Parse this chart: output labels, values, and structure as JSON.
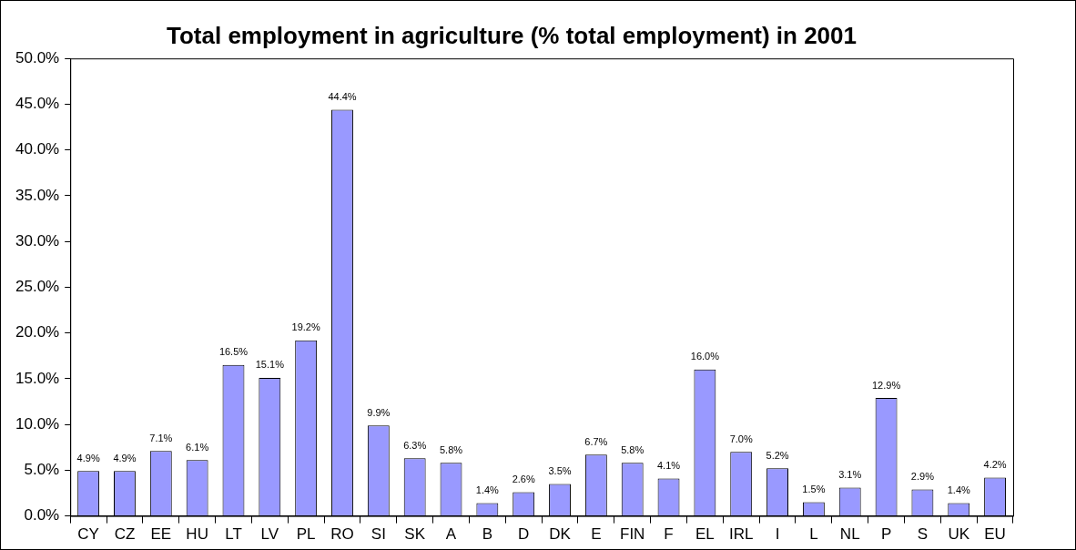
{
  "chart_data": {
    "type": "bar",
    "title": "Total employment in agriculture (% total employment) in 2001",
    "categories": [
      "CY",
      "CZ",
      "EE",
      "HU",
      "LT",
      "LV",
      "PL",
      "RO",
      "SI",
      "SK",
      "A",
      "B",
      "D",
      "DK",
      "E",
      "FIN",
      "F",
      "EL",
      "IRL",
      "I",
      "L",
      "NL",
      "P",
      "S",
      "UK",
      "EU"
    ],
    "values": [
      4.9,
      4.9,
      7.1,
      6.1,
      16.5,
      15.1,
      19.2,
      44.4,
      9.9,
      6.3,
      5.8,
      1.4,
      2.6,
      3.5,
      6.7,
      5.8,
      4.1,
      16.0,
      7.0,
      5.2,
      1.5,
      3.1,
      12.9,
      2.9,
      1.4,
      4.2
    ],
    "value_labels": [
      "4.9%",
      "4.9%",
      "7.1%",
      "6.1%",
      "16.5%",
      "15.1%",
      "19.2%",
      "44.4%",
      "9.9%",
      "6.3%",
      "5.8%",
      "1.4%",
      "2.6%",
      "3.5%",
      "6.7%",
      "5.8%",
      "4.1%",
      "16.0%",
      "7.0%",
      "5.2%",
      "1.5%",
      "3.1%",
      "12.9%",
      "2.9%",
      "1.4%",
      "4.2%"
    ],
    "color": "#9999ff",
    "ylim": [
      0,
      50
    ],
    "yticks": [
      {
        "value": 0,
        "label": "0.0%"
      },
      {
        "value": 5,
        "label": "5.0%"
      },
      {
        "value": 10,
        "label": "10.0%"
      },
      {
        "value": 15,
        "label": "15.0%"
      },
      {
        "value": 20,
        "label": "20.0%"
      },
      {
        "value": 25,
        "label": "25.0%"
      },
      {
        "value": 30,
        "label": "30.0%"
      },
      {
        "value": 35,
        "label": "35.0%"
      },
      {
        "value": 40,
        "label": "40.0%"
      },
      {
        "value": 45,
        "label": "45.0%"
      },
      {
        "value": 50,
        "label": "50.0%"
      }
    ],
    "grid": false,
    "legend": false
  }
}
